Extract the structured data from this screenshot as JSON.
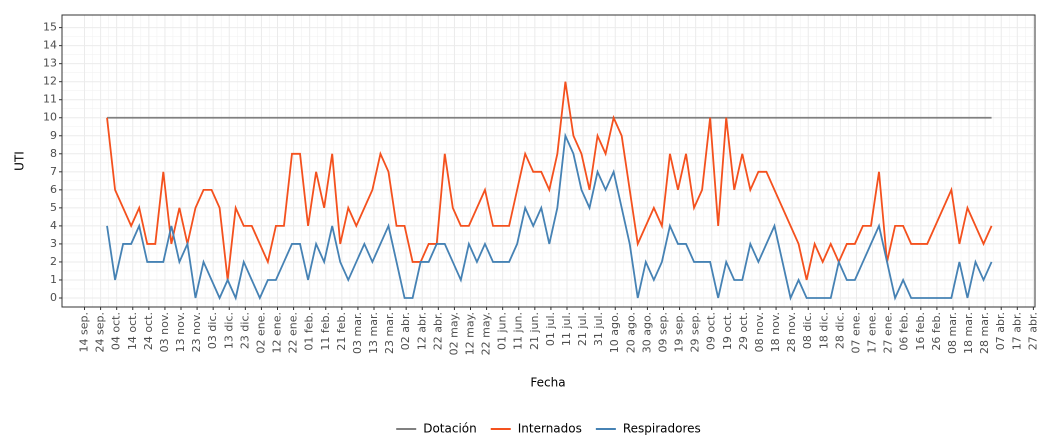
{
  "chart_data": {
    "type": "line",
    "x_label": "Fecha",
    "y_label": "UTI",
    "x": [
      14,
      19,
      24,
      29,
      34,
      39,
      44,
      49,
      54,
      59,
      64,
      69,
      74,
      79,
      84,
      89,
      94,
      99,
      104,
      109,
      114,
      119,
      124,
      129,
      134,
      139,
      144,
      149,
      154,
      159,
      164,
      169,
      174,
      179,
      184,
      189,
      194,
      199,
      204,
      209,
      214,
      219,
      224,
      229,
      234,
      239,
      244,
      249,
      254,
      259,
      264,
      269,
      274,
      279,
      284,
      289,
      294,
      299,
      304,
      309,
      314,
      319,
      324,
      329,
      334,
      339,
      344,
      349,
      354,
      359,
      364,
      369,
      374,
      379,
      384,
      389,
      394,
      399,
      404,
      409,
      414,
      419,
      424,
      429,
      434,
      439,
      444,
      449,
      454,
      459,
      464,
      469,
      474,
      479,
      484,
      489,
      494,
      499,
      504,
      509,
      514,
      519,
      524,
      529,
      534,
      539,
      544,
      549,
      554,
      559,
      564
    ],
    "series": [
      {
        "name": "Dotación",
        "color": "#808080",
        "values": [
          10,
          10,
          10,
          10,
          10,
          10,
          10,
          10,
          10,
          10,
          10,
          10,
          10,
          10,
          10,
          10,
          10,
          10,
          10,
          10,
          10,
          10,
          10,
          10,
          10,
          10,
          10,
          10,
          10,
          10,
          10,
          10,
          10,
          10,
          10,
          10,
          10,
          10,
          10,
          10,
          10,
          10,
          10,
          10,
          10,
          10,
          10,
          10,
          10,
          10,
          10,
          10,
          10,
          10,
          10,
          10,
          10,
          10,
          10,
          10,
          10,
          10,
          10,
          10,
          10,
          10,
          10,
          10,
          10,
          10,
          10,
          10,
          10,
          10,
          10,
          10,
          10,
          10,
          10,
          10,
          10,
          10,
          10,
          10,
          10,
          10,
          10,
          10,
          10,
          10,
          10,
          10,
          10,
          10,
          10,
          10,
          10,
          10,
          10,
          10,
          10,
          10,
          10,
          10,
          10,
          10,
          10,
          10,
          10,
          10,
          10
        ]
      },
      {
        "name": "Internados",
        "color": "#f4511e",
        "values": [
          10,
          6,
          5,
          4,
          5,
          3,
          3,
          7,
          3,
          5,
          3,
          5,
          6,
          6,
          5,
          1,
          5,
          4,
          4,
          3,
          2,
          4,
          4,
          8,
          8,
          4,
          7,
          5,
          8,
          3,
          5,
          4,
          5,
          6,
          8,
          7,
          4,
          4,
          2,
          2,
          3,
          3,
          8,
          5,
          4,
          4,
          5,
          6,
          4,
          4,
          4,
          6,
          8,
          7,
          7,
          6,
          8,
          12,
          9,
          8,
          6,
          9,
          8,
          10,
          9,
          6,
          3,
          4,
          5,
          4,
          8,
          6,
          8,
          5,
          6,
          10,
          4,
          10,
          6,
          8,
          6,
          7,
          7,
          6,
          5,
          4,
          3,
          1,
          3,
          2,
          3,
          2,
          3,
          3,
          4,
          4,
          7,
          2,
          4,
          4,
          3,
          3,
          3,
          4,
          5,
          6,
          3,
          5,
          4,
          3,
          4
        ]
      },
      {
        "name": "Respiradores",
        "color": "#4682b4",
        "values": [
          4,
          1,
          3,
          3,
          4,
          2,
          2,
          2,
          4,
          2,
          3,
          0,
          2,
          1,
          0,
          1,
          0,
          2,
          1,
          0,
          1,
          1,
          2,
          3,
          3,
          1,
          3,
          2,
          4,
          2,
          1,
          2,
          3,
          2,
          3,
          4,
          2,
          0,
          0,
          2,
          2,
          3,
          3,
          2,
          1,
          3,
          2,
          3,
          2,
          2,
          2,
          3,
          5,
          4,
          5,
          3,
          5,
          9,
          8,
          6,
          5,
          7,
          6,
          7,
          5,
          3,
          0,
          2,
          1,
          2,
          4,
          3,
          3,
          2,
          2,
          2,
          0,
          2,
          1,
          1,
          3,
          2,
          3,
          4,
          2,
          0,
          1,
          0,
          0,
          0,
          0,
          2,
          1,
          1,
          2,
          3,
          4,
          2,
          0,
          1,
          0,
          0,
          0,
          0,
          0,
          0,
          2,
          0,
          2,
          1,
          2
        ]
      }
    ],
    "ylim": [
      -0.5,
      15.7
    ],
    "yticks": [
      0,
      1,
      2,
      3,
      4,
      5,
      6,
      7,
      8,
      9,
      10,
      11,
      12,
      13,
      14,
      15
    ],
    "xlim": [
      -14,
      591
    ],
    "xticks": [
      {
        "value": 0,
        "label": "14 sep."
      },
      {
        "value": 10,
        "label": "24 sep."
      },
      {
        "value": 20,
        "label": "04 oct."
      },
      {
        "value": 30,
        "label": "14 oct."
      },
      {
        "value": 40,
        "label": "24 oct."
      },
      {
        "value": 50,
        "label": "03 nov."
      },
      {
        "value": 60,
        "label": "13 nov."
      },
      {
        "value": 70,
        "label": "23 nov."
      },
      {
        "value": 80,
        "label": "03 dic."
      },
      {
        "value": 90,
        "label": "13 dic."
      },
      {
        "value": 100,
        "label": "23 dic."
      },
      {
        "value": 110,
        "label": "02 ene."
      },
      {
        "value": 120,
        "label": "12 ene."
      },
      {
        "value": 130,
        "label": "22 ene."
      },
      {
        "value": 140,
        "label": "01 feb."
      },
      {
        "value": 150,
        "label": "11 feb."
      },
      {
        "value": 160,
        "label": "21 feb."
      },
      {
        "value": 170,
        "label": "03 mar."
      },
      {
        "value": 180,
        "label": "13 mar."
      },
      {
        "value": 190,
        "label": "23 mar."
      },
      {
        "value": 200,
        "label": "02 abr."
      },
      {
        "value": 210,
        "label": "12 abr."
      },
      {
        "value": 220,
        "label": "22 abr."
      },
      {
        "value": 230,
        "label": "02 may."
      },
      {
        "value": 240,
        "label": "12 may."
      },
      {
        "value": 250,
        "label": "22 may."
      },
      {
        "value": 260,
        "label": "01 jun."
      },
      {
        "value": 270,
        "label": "11 jun."
      },
      {
        "value": 280,
        "label": "21 jun."
      },
      {
        "value": 290,
        "label": "01 jul."
      },
      {
        "value": 300,
        "label": "11 jul."
      },
      {
        "value": 310,
        "label": "21 jul."
      },
      {
        "value": 320,
        "label": "31 jul."
      },
      {
        "value": 330,
        "label": "10 ago."
      },
      {
        "value": 340,
        "label": "20 ago."
      },
      {
        "value": 350,
        "label": "30 ago."
      },
      {
        "value": 360,
        "label": "09 sep."
      },
      {
        "value": 370,
        "label": "19 sep."
      },
      {
        "value": 380,
        "label": "29 sep."
      },
      {
        "value": 390,
        "label": "09 oct."
      },
      {
        "value": 400,
        "label": "19 oct."
      },
      {
        "value": 410,
        "label": "29 oct."
      },
      {
        "value": 420,
        "label": "08 nov."
      },
      {
        "value": 430,
        "label": "18 nov."
      },
      {
        "value": 440,
        "label": "28 nov."
      },
      {
        "value": 450,
        "label": "08 dic."
      },
      {
        "value": 460,
        "label": "18 dic."
      },
      {
        "value": 470,
        "label": "28 dic."
      },
      {
        "value": 480,
        "label": "07 ene."
      },
      {
        "value": 490,
        "label": "17 ene."
      },
      {
        "value": 500,
        "label": "27 ene."
      },
      {
        "value": 510,
        "label": "06 feb."
      },
      {
        "value": 520,
        "label": "16 feb."
      },
      {
        "value": 530,
        "label": "26 feb."
      },
      {
        "value": 540,
        "label": "08 mar."
      },
      {
        "value": 550,
        "label": "18 mar."
      },
      {
        "value": 560,
        "label": "28 mar."
      },
      {
        "value": 570,
        "label": "07 abr."
      },
      {
        "value": 580,
        "label": "17 abr."
      },
      {
        "value": 590,
        "label": "27 abr."
      }
    ],
    "grid": true,
    "legend": "bottom"
  }
}
